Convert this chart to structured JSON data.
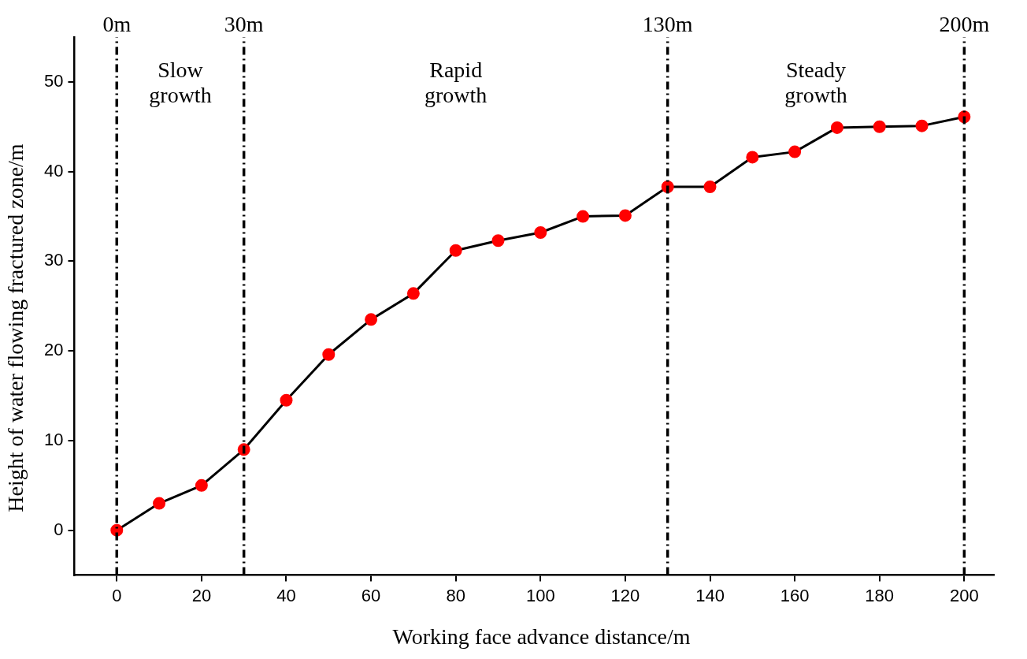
{
  "chart_data": {
    "type": "line",
    "xlabel": "Working face advance distance/m",
    "ylabel": "Height of water flowing fractured zone/m",
    "x": [
      0,
      10,
      20,
      30,
      40,
      50,
      60,
      70,
      80,
      90,
      100,
      110,
      120,
      130,
      140,
      150,
      160,
      170,
      180,
      190,
      200
    ],
    "series": [
      {
        "color": "#ff0000",
        "values": [
          0,
          3.0,
          5.0,
          9.0,
          14.5,
          19.6,
          23.5,
          26.4,
          31.2,
          32.3,
          33.2,
          35.0,
          35.1,
          38.3,
          38.3,
          41.6,
          42.2,
          44.9,
          45.0,
          45.1,
          46.1
        ]
      }
    ],
    "xlim": [
      -10,
      207
    ],
    "ylim": [
      -5,
      55
    ],
    "xticks": [
      0,
      20,
      40,
      60,
      80,
      100,
      120,
      140,
      160,
      180,
      200
    ],
    "yticks": [
      0,
      10,
      20,
      30,
      40,
      50
    ],
    "ref_lines": [
      {
        "axis": "x",
        "value": 0,
        "label": "0m",
        "color": "#000000",
        "line_style": "dashdot"
      },
      {
        "axis": "x",
        "value": 30,
        "label": "30m",
        "color": "#000000",
        "line_style": "dashdot"
      },
      {
        "axis": "x",
        "value": 130,
        "label": "130m",
        "color": "#000000",
        "line_style": "dashdot"
      },
      {
        "axis": "x",
        "value": 200,
        "label": "200m",
        "color": "#000000",
        "line_style": "dashdot"
      }
    ],
    "annotations": [
      "Slow growth",
      "Rapid growth",
      "Steady growth"
    ],
    "grid": false,
    "legend": false,
    "marker": "circle",
    "line_style": "solid"
  }
}
